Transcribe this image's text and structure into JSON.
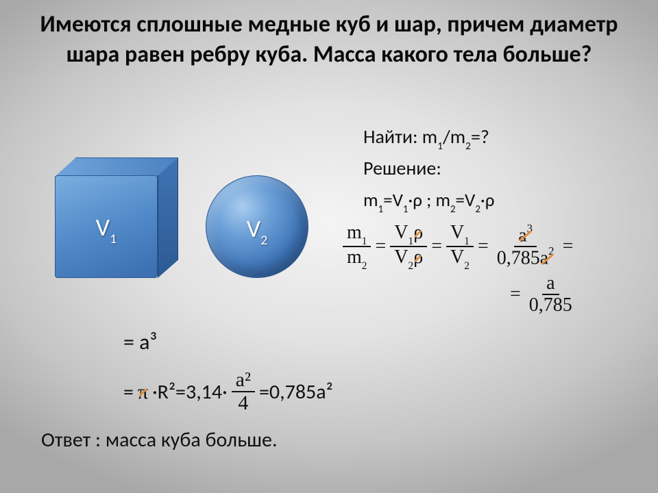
{
  "title": "Имеются сплошные медные куб и шар, причем диаметр шара равен ребру куба. Масса какого тела больше?",
  "shapes": {
    "cube_label": "V",
    "cube_sub": "1",
    "sphere_label": "V",
    "sphere_sub": "2"
  },
  "find_label": "Найти: m",
  "find_sub1": "1",
  "find_mid": "/m",
  "find_sub2": "2",
  "find_tail": "=?",
  "solution_heading": "Решение:",
  "m1_prefix": "m",
  "m1_sub": "1",
  "eq_sym": "=",
  "V1_sym": "V",
  "rho": "ρ",
  "sep": " ; ",
  "m2_sub": "2",
  "dot": "·",
  "frac1": {
    "num_a": "m",
    "num_s": "1",
    "den_a": "m",
    "den_s": "2"
  },
  "frac2": {
    "num": "V",
    "num_s": "1",
    "den": "V",
    "den_s": "2"
  },
  "frac3": {
    "num": "V",
    "num_s": "1",
    "den": "V",
    "den_s": "2"
  },
  "frac4": {
    "num": "a",
    "num_s": "3",
    "den_pre": "0,785",
    "den_a": "a",
    "den_s": "2"
  },
  "frac5": {
    "num": "a",
    "den": "0,785"
  },
  "line_a3": "= a³",
  "pir_eq_prefix": "= ",
  "pi_sym": "π",
  "pir_mid1": " ·R²=3,14·",
  "pir_frac_num": "a²",
  "pir_frac_den": "4",
  "pir_tail": " =0,785a²",
  "answer": "Ответ : масса куба больше.",
  "colors": {
    "text": "#111111",
    "strike": "#e38f3c",
    "cube_a": "#7aaee0",
    "cube_b": "#3a6eae",
    "sphere_a": "#a9cdef",
    "sphere_b": "#2a5a96"
  },
  "fontsizes": {
    "title": 34,
    "body": 28,
    "answer": 30,
    "shape_label": 36
  }
}
